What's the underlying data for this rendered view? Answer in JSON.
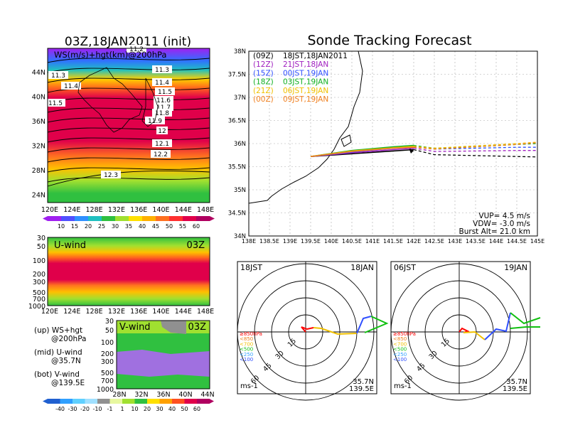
{
  "titles": {
    "left": "03Z,18JAN2011 (init)",
    "right": "Sonde Tracking Forecast"
  },
  "map_panel": {
    "label": "WS(m/s)+hgt(km)@200hPa",
    "lat_ticks": [
      "44N",
      "40N",
      "36N",
      "32N",
      "28N",
      "24N"
    ],
    "lon_ticks": [
      "120E",
      "124E",
      "128E",
      "132E",
      "136E",
      "140E",
      "144E",
      "148E"
    ],
    "height_contours": [
      "11.2",
      "11.3",
      "11.3",
      "11.4",
      "11.4",
      "11.5",
      "11.5",
      "11.6",
      "11.7",
      "11.8",
      "11.9",
      "12",
      "12.1",
      "12.2",
      "12.3"
    ],
    "colorbar_ticks": [
      "10",
      "15",
      "20",
      "25",
      "30",
      "35",
      "40",
      "45",
      "50",
      "55",
      "60"
    ]
  },
  "uwind_panel": {
    "title": "U-wind",
    "time": "03Z",
    "p_ticks": [
      "30",
      "50",
      "100",
      "200",
      "300",
      "500",
      "700",
      "1000"
    ],
    "lon_ticks": [
      "120E",
      "124E",
      "128E",
      "132E",
      "136E",
      "140E",
      "144E",
      "148E"
    ]
  },
  "vwind_panel": {
    "title": "V-wind",
    "time": "03Z",
    "p_ticks": [
      "30",
      "50",
      "100",
      "200",
      "300",
      "500",
      "700",
      "1000"
    ],
    "lat_ticks": [
      "28N",
      "32N",
      "36N",
      "40N",
      "44N"
    ],
    "colorbar_ticks": [
      "-40",
      "-30",
      "-20",
      "-10",
      "-1",
      "1",
      "10",
      "20",
      "30",
      "40",
      "50",
      "60"
    ]
  },
  "legend_notes": [
    {
      "a": "(up) WS+hgt",
      "b": "@200hPa"
    },
    {
      "a": "(mid) U-wind",
      "b": "@35.7N"
    },
    {
      "a": "(bot) V-wind",
      "b": "@139.5E"
    }
  ],
  "tracking": {
    "lat_ticks": [
      "38N",
      "37.5N",
      "37N",
      "36.5N",
      "36N",
      "35.5N",
      "35N",
      "34.5N",
      "34N"
    ],
    "lon_ticks": [
      "138E",
      "138.5E",
      "139E",
      "139.5E",
      "140E",
      "140.5E",
      "141E",
      "141.5E",
      "142E",
      "142.5E",
      "143E",
      "143.5E",
      "144E",
      "144.5E",
      "145E"
    ],
    "runs": [
      {
        "code": "(09Z)",
        "time": "18JST,18JAN2011",
        "color": "#000000"
      },
      {
        "code": "(12Z)",
        "time": "21JST,18JAN",
        "color": "#a020c0"
      },
      {
        "code": "(15Z)",
        "time": "00JST,19JAN",
        "color": "#3050ff"
      },
      {
        "code": "(18Z)",
        "time": "03JST,19JAN",
        "color": "#10b020"
      },
      {
        "code": "(21Z)",
        "time": "06JST,19JAN",
        "color": "#f0c000"
      },
      {
        "code": "(00Z)",
        "time": "09JST,19JAN",
        "color": "#f08020"
      }
    ],
    "params": {
      "vup": "VUP= 4.5 m/s",
      "vdw": "VDW= -3.0 m/s",
      "burst": "Burst Alt= 21.0 km"
    }
  },
  "hodographs": [
    {
      "jst": "18JST",
      "date": "18JAN",
      "lat": "35.7N",
      "lon": "139.5E",
      "unit": "ms-1"
    },
    {
      "jst": "06JST",
      "date": "19JAN",
      "lat": "35.7N",
      "lon": "139.5E",
      "unit": "ms-1"
    }
  ],
  "hodo_ring_labels": [
    "15",
    "30",
    "45",
    "60"
  ],
  "hodo_levels": [
    {
      "label": "≥850hPa",
      "color": "#ff0000"
    },
    {
      "label": "<850",
      "color": "#f08020"
    },
    {
      "label": "<700",
      "color": "#f0c000"
    },
    {
      "label": "<500",
      "color": "#10c010"
    },
    {
      "label": "<250",
      "color": "#30a0ff"
    },
    {
      "label": "<100",
      "color": "#3050ff"
    }
  ],
  "chart_data": {
    "type": "line",
    "title": "Sonde Tracking Forecast",
    "xlabel": "",
    "ylabel": "",
    "xlim": [
      138,
      145
    ],
    "ylim": [
      34,
      38
    ],
    "series": [
      {
        "name": "(09Z) 18JST,18JAN2011",
        "x": [
          139.5,
          140.5,
          141.5,
          142.0,
          142.5,
          143.5,
          144.5,
          145.0
        ],
        "y": [
          35.72,
          35.78,
          35.84,
          35.87,
          35.76,
          35.74,
          35.72,
          35.71
        ]
      },
      {
        "name": "(12Z) 21JST,18JAN",
        "x": [
          139.5,
          140.5,
          141.5,
          142.0,
          142.5,
          143.5,
          144.5,
          145.0
        ],
        "y": [
          35.72,
          35.8,
          35.87,
          35.9,
          35.83,
          35.84,
          35.85,
          35.85
        ]
      },
      {
        "name": "(15Z) 00JST,19JAN",
        "x": [
          139.5,
          140.5,
          141.5,
          142.0,
          142.5,
          143.5,
          144.5,
          145.0
        ],
        "y": [
          35.72,
          35.82,
          35.9,
          35.93,
          35.88,
          35.9,
          35.92,
          35.92
        ]
      },
      {
        "name": "(18Z) 03JST,19JAN",
        "x": [
          139.5,
          140.5,
          141.5,
          142.0,
          142.5,
          143.5,
          144.5,
          145.0
        ],
        "y": [
          35.72,
          35.85,
          35.93,
          35.96,
          35.9,
          35.93,
          35.98,
          36.0
        ]
      },
      {
        "name": "(21Z) 06JST,19JAN",
        "x": [
          139.5,
          140.5,
          141.5,
          142.0,
          142.5,
          143.5,
          144.5,
          145.0
        ],
        "y": [
          35.72,
          35.84,
          35.91,
          35.94,
          35.9,
          35.95,
          36.0,
          36.03
        ]
      },
      {
        "name": "(00Z) 09JST,19JAN",
        "x": [
          139.5,
          140.5,
          141.5,
          142.0,
          142.5,
          143.5,
          144.5,
          145.0
        ],
        "y": [
          35.72,
          35.83,
          35.9,
          35.92,
          35.88,
          35.93,
          35.98,
          36.02
        ]
      }
    ]
  }
}
